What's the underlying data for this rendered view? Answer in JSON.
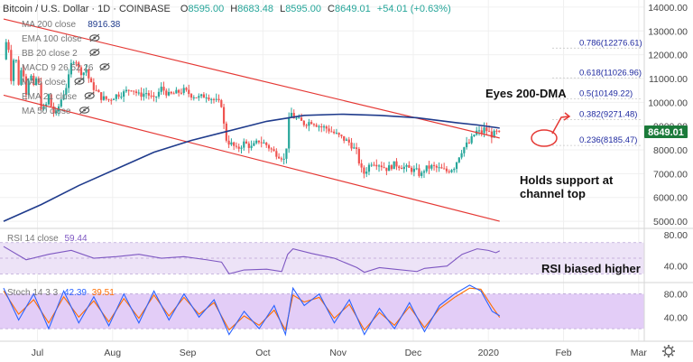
{
  "header": {
    "title": "Bitcoin / U.S. Dollar · 1D · COINBASE",
    "ohlc": {
      "o_label": "O",
      "o": "8595.00",
      "h_label": "H",
      "h": "8683.48",
      "l_label": "L",
      "l": "8595.00",
      "c_label": "C",
      "c": "8649.01",
      "change": "+54.01 (+0.63%)"
    },
    "indicators": [
      {
        "label": "MA 200 close",
        "value": "8916.38"
      },
      {
        "label": "EMA 100 close",
        "value": ""
      },
      {
        "label": "BB 20 close 2",
        "value": ""
      },
      {
        "label": "MACD 9 26 52 26",
        "value": ""
      },
      {
        "label": "MA 5 close",
        "value": ""
      },
      {
        "label": "EMA 21 close",
        "value": ""
      },
      {
        "label": "MA 50 close",
        "value": ""
      }
    ]
  },
  "price_tag": "8649.01",
  "annotations": {
    "eyes_dma": "Eyes 200-DMA",
    "support_line1": "Holds support at",
    "support_line2": "channel top",
    "rsi_note": "RSI biased higher"
  },
  "fib_levels": [
    {
      "label": "0.786(12276.61)",
      "value": 12276.61
    },
    {
      "label": "0.618(11026.96)",
      "value": 11026.96
    },
    {
      "label": "0.5(10149.22)",
      "value": 10149.22
    },
    {
      "label": "0.382(9271.48)",
      "value": 9271.48
    },
    {
      "label": "0.236(8185.47)",
      "value": 8185.47
    }
  ],
  "rsi_header": {
    "label": "RSI 14 close",
    "value": "59.44"
  },
  "stoch_header": {
    "label": "Stoch 14 3 3",
    "k": "42.39",
    "d": "39.51"
  },
  "colors": {
    "up": "#26a69a",
    "down": "#ef5350",
    "channel": "#e53935",
    "ma200": "#1f3b8c",
    "rsi_line": "#7e57c2",
    "rsi_band": "#ede3f7",
    "stoch_band": "#e3cdf7",
    "stoch_k": "#2962ff",
    "stoch_d": "#ff6d00",
    "tag": "#1b7a3a",
    "fib": "#1f2aa0",
    "icon": "#555555"
  },
  "chart_data": [
    {
      "type": "candlestick",
      "title": "Bitcoin / U.S. Dollar · 1D · COINBASE",
      "x_ticks": [
        "Jul",
        "Aug",
        "Sep",
        "Oct",
        "Nov",
        "Dec",
        "2020",
        "Feb",
        "Mar"
      ],
      "y_ticks": [
        "14000.00",
        "13000.00",
        "12000.00",
        "11000.00",
        "10000.00",
        "9000.00",
        "8000.00",
        "7000.00",
        "6000.00",
        "5000.00"
      ],
      "ylim": [
        4700,
        14300
      ],
      "x_range_months": [
        0,
        8.5
      ],
      "close_path": [
        [
          0,
          11800
        ],
        [
          0.05,
          12900
        ],
        [
          0.1,
          11000
        ],
        [
          0.15,
          12200
        ],
        [
          0.2,
          10800
        ],
        [
          0.25,
          11600
        ],
        [
          0.3,
          10400
        ],
        [
          0.35,
          11300
        ],
        [
          0.4,
          10600
        ],
        [
          0.45,
          11200
        ],
        [
          0.5,
          9800
        ],
        [
          0.55,
          9700
        ],
        [
          0.6,
          10300
        ],
        [
          0.65,
          9600
        ],
        [
          0.7,
          9500
        ],
        [
          0.75,
          10000
        ],
        [
          0.8,
          10400
        ],
        [
          0.85,
          10800
        ],
        [
          0.9,
          11600
        ],
        [
          0.95,
          11900
        ],
        [
          1.0,
          11400
        ],
        [
          1.05,
          11200
        ],
        [
          1.1,
          11400
        ],
        [
          1.15,
          10800
        ],
        [
          1.2,
          10600
        ],
        [
          1.25,
          10400
        ],
        [
          1.3,
          10200
        ],
        [
          1.4,
          10100
        ],
        [
          1.5,
          10300
        ],
        [
          1.6,
          10400
        ],
        [
          1.7,
          10600
        ],
        [
          1.8,
          10300
        ],
        [
          1.9,
          10400
        ],
        [
          2.0,
          10100
        ],
        [
          2.1,
          10600
        ],
        [
          2.2,
          10300
        ],
        [
          2.3,
          10400
        ],
        [
          2.4,
          10500
        ],
        [
          2.5,
          10300
        ],
        [
          2.6,
          10200
        ],
        [
          2.7,
          10300
        ],
        [
          2.8,
          10100
        ],
        [
          2.9,
          9900
        ],
        [
          2.95,
          8500
        ],
        [
          3.0,
          8300
        ],
        [
          3.05,
          8200
        ],
        [
          3.1,
          8000
        ],
        [
          3.2,
          8300
        ],
        [
          3.3,
          8100
        ],
        [
          3.4,
          8400
        ],
        [
          3.5,
          8200
        ],
        [
          3.6,
          7900
        ],
        [
          3.7,
          7700
        ],
        [
          3.75,
          7500
        ],
        [
          3.78,
          9000
        ],
        [
          3.82,
          9600
        ],
        [
          3.85,
          9400
        ],
        [
          3.9,
          9300
        ],
        [
          4.0,
          9100
        ],
        [
          4.1,
          9200
        ],
        [
          4.2,
          9000
        ],
        [
          4.3,
          8900
        ],
        [
          4.4,
          8700
        ],
        [
          4.5,
          8500
        ],
        [
          4.6,
          8300
        ],
        [
          4.7,
          7900
        ],
        [
          4.75,
          7200
        ],
        [
          4.8,
          7000
        ],
        [
          4.85,
          7300
        ],
        [
          4.9,
          7500
        ],
        [
          5.0,
          7400
        ],
        [
          5.1,
          7200
        ],
        [
          5.2,
          7400
        ],
        [
          5.3,
          7300
        ],
        [
          5.4,
          7200
        ],
        [
          5.5,
          7100
        ],
        [
          5.55,
          6900
        ],
        [
          5.6,
          7200
        ],
        [
          5.7,
          7300
        ],
        [
          5.8,
          7200
        ],
        [
          5.9,
          7100
        ],
        [
          6.0,
          7300
        ],
        [
          6.05,
          7700
        ],
        [
          6.1,
          8000
        ],
        [
          6.15,
          8200
        ],
        [
          6.2,
          8300
        ],
        [
          6.25,
          8600
        ],
        [
          6.3,
          8800
        ],
        [
          6.35,
          8700
        ],
        [
          6.4,
          8900
        ],
        [
          6.5,
          8600
        ],
        [
          6.55,
          8750
        ],
        [
          6.6,
          8650
        ]
      ],
      "series": [
        {
          "name": "MA 200 close",
          "points": [
            [
              0,
              5000
            ],
            [
              0.5,
              5700
            ],
            [
              1,
              6500
            ],
            [
              1.5,
              7200
            ],
            [
              2,
              7900
            ],
            [
              2.5,
              8400
            ],
            [
              3,
              8800
            ],
            [
              3.5,
              9200
            ],
            [
              4,
              9450
            ],
            [
              4.5,
              9500
            ],
            [
              5,
              9450
            ],
            [
              5.5,
              9350
            ],
            [
              6,
              9150
            ],
            [
              6.3,
              9050
            ],
            [
              6.6,
              8916
            ]
          ]
        }
      ],
      "channel": {
        "upper": [
          [
            0,
            13500
          ],
          [
            6.6,
            8500
          ]
        ],
        "lower": [
          [
            0,
            10300
          ],
          [
            6.6,
            5000
          ]
        ]
      }
    },
    {
      "type": "line",
      "title": "RSI 14 close",
      "y_ticks": [
        "80.00",
        "40.00"
      ],
      "ylim": [
        20,
        87
      ],
      "band": [
        30,
        70
      ],
      "series": [
        {
          "name": "RSI 14 close",
          "points": [
            [
              0,
              65
            ],
            [
              0.3,
              48
            ],
            [
              0.6,
              55
            ],
            [
              0.9,
              60
            ],
            [
              1.2,
              50
            ],
            [
              1.5,
              52
            ],
            [
              1.8,
              55
            ],
            [
              2.1,
              50
            ],
            [
              2.4,
              52
            ],
            [
              2.7,
              48
            ],
            [
              2.9,
              45
            ],
            [
              3.0,
              30
            ],
            [
              3.2,
              35
            ],
            [
              3.5,
              36
            ],
            [
              3.7,
              33
            ],
            [
              3.78,
              55
            ],
            [
              3.85,
              62
            ],
            [
              4.1,
              56
            ],
            [
              4.4,
              50
            ],
            [
              4.7,
              38
            ],
            [
              4.8,
              32
            ],
            [
              5.0,
              38
            ],
            [
              5.2,
              36
            ],
            [
              5.5,
              33
            ],
            [
              5.6,
              37
            ],
            [
              5.9,
              40
            ],
            [
              6.1,
              55
            ],
            [
              6.3,
              62
            ],
            [
              6.45,
              60
            ],
            [
              6.55,
              57
            ],
            [
              6.6,
              59.44
            ]
          ]
        }
      ]
    },
    {
      "type": "line",
      "title": "Stoch 14 3 3",
      "y_ticks": [
        "80.00",
        "40.00"
      ],
      "ylim": [
        0,
        98
      ],
      "band": [
        20,
        80
      ],
      "series": [
        {
          "name": "%K",
          "points": [
            [
              0,
              90
            ],
            [
              0.2,
              35
            ],
            [
              0.4,
              80
            ],
            [
              0.6,
              20
            ],
            [
              0.8,
              85
            ],
            [
              1.0,
              30
            ],
            [
              1.2,
              75
            ],
            [
              1.4,
              25
            ],
            [
              1.6,
              80
            ],
            [
              1.8,
              30
            ],
            [
              2.0,
              85
            ],
            [
              2.2,
              35
            ],
            [
              2.4,
              80
            ],
            [
              2.6,
              40
            ],
            [
              2.8,
              70
            ],
            [
              3.0,
              10
            ],
            [
              3.2,
              50
            ],
            [
              3.4,
              20
            ],
            [
              3.6,
              60
            ],
            [
              3.75,
              10
            ],
            [
              3.85,
              90
            ],
            [
              4.0,
              60
            ],
            [
              4.2,
              80
            ],
            [
              4.4,
              30
            ],
            [
              4.6,
              70
            ],
            [
              4.8,
              10
            ],
            [
              5.0,
              55
            ],
            [
              5.2,
              20
            ],
            [
              5.4,
              65
            ],
            [
              5.6,
              15
            ],
            [
              5.8,
              60
            ],
            [
              6.0,
              80
            ],
            [
              6.2,
              95
            ],
            [
              6.35,
              85
            ],
            [
              6.5,
              50
            ],
            [
              6.6,
              42.39
            ]
          ]
        },
        {
          "name": "%D",
          "points": [
            [
              0,
              85
            ],
            [
              0.2,
              45
            ],
            [
              0.4,
              70
            ],
            [
              0.6,
              30
            ],
            [
              0.8,
              75
            ],
            [
              1.0,
              40
            ],
            [
              1.2,
              68
            ],
            [
              1.4,
              32
            ],
            [
              1.6,
              72
            ],
            [
              1.8,
              38
            ],
            [
              2.0,
              78
            ],
            [
              2.2,
              42
            ],
            [
              2.4,
              74
            ],
            [
              2.6,
              45
            ],
            [
              2.8,
              65
            ],
            [
              3.0,
              18
            ],
            [
              3.2,
              42
            ],
            [
              3.4,
              26
            ],
            [
              3.6,
              52
            ],
            [
              3.75,
              18
            ],
            [
              3.85,
              78
            ],
            [
              4.0,
              66
            ],
            [
              4.2,
              74
            ],
            [
              4.4,
              38
            ],
            [
              4.6,
              62
            ],
            [
              4.8,
              18
            ],
            [
              5.0,
              48
            ],
            [
              5.2,
              26
            ],
            [
              5.4,
              58
            ],
            [
              5.6,
              22
            ],
            [
              5.8,
              55
            ],
            [
              6.0,
              74
            ],
            [
              6.2,
              90
            ],
            [
              6.35,
              88
            ],
            [
              6.5,
              58
            ],
            [
              6.6,
              39.51
            ]
          ]
        }
      ]
    }
  ]
}
